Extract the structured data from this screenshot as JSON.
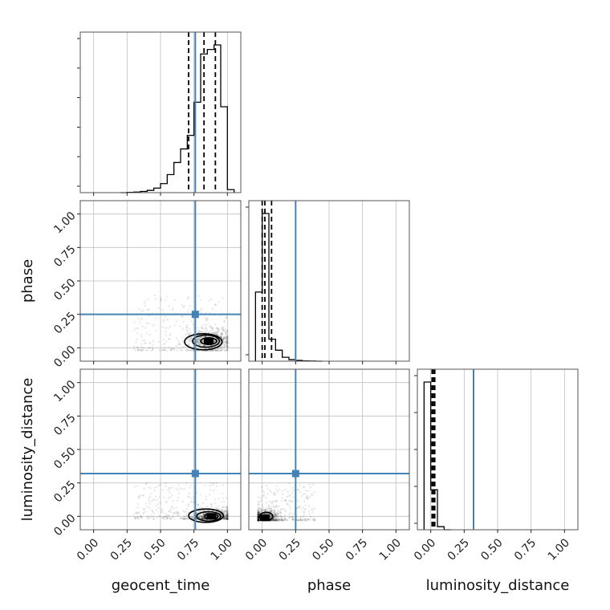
{
  "chart_data": {
    "type": "corner",
    "parameters": [
      "geocent_time",
      "phase",
      "luminosity_distance"
    ],
    "range": [
      -0.1,
      1.1
    ],
    "ticks": [
      0.0,
      0.25,
      0.5,
      0.75,
      1.0
    ],
    "tick_labels": [
      "0.00",
      "0.25",
      "0.50",
      "0.75",
      "1.00"
    ],
    "truth_color": "#4682b4",
    "truths": [
      0.76,
      0.25,
      0.32
    ],
    "grid": true,
    "histograms": [
      {
        "parameter": "geocent_time",
        "bin_edges": [
          0.2,
          0.25,
          0.3,
          0.35,
          0.4,
          0.45,
          0.5,
          0.55,
          0.6,
          0.65,
          0.7,
          0.75,
          0.8,
          0.85,
          0.9,
          0.95,
          1.0,
          1.05
        ],
        "counts": [
          0.0,
          0.002,
          0.004,
          0.008,
          0.015,
          0.03,
          0.06,
          0.12,
          0.2,
          0.29,
          0.38,
          0.6,
          0.92,
          0.95,
          0.98,
          0.57,
          0.02
        ],
        "quantiles": [
          0.71,
          0.825,
          0.91
        ]
      },
      {
        "parameter": "phase",
        "bin_edges": [
          -0.05,
          0.0,
          0.05,
          0.1,
          0.15,
          0.2,
          0.25,
          0.3,
          0.35,
          0.4,
          0.45
        ],
        "counts": [
          0.44,
          0.94,
          0.14,
          0.07,
          0.025,
          0.01,
          0.005,
          0.002,
          0.001,
          0.0
        ],
        "quantiles": [
          0.0,
          0.02,
          0.07
        ]
      },
      {
        "parameter": "luminosity_distance",
        "bin_edges": [
          -0.05,
          0.0,
          0.05,
          0.1,
          0.15
        ],
        "counts": [
          0.96,
          0.26,
          0.02,
          0.0
        ],
        "quantiles": [
          0.01,
          0.02,
          0.03
        ]
      }
    ],
    "scatter_panels": [
      {
        "x": "geocent_time",
        "y": "phase",
        "density_center": [
          0.86,
          0.05
        ],
        "contour_levels": [
          {
            "center": [
              0.86,
              0.05
            ],
            "rx": 0.06,
            "ry": 0.025
          },
          {
            "center": [
              0.84,
              0.05
            ],
            "rx": 0.1,
            "ry": 0.045
          },
          {
            "center": [
              0.82,
              0.045
            ],
            "rx": 0.14,
            "ry": 0.06
          }
        ],
        "sample_extent": {
          "x": [
            0.3,
            1.0
          ],
          "y": [
            -0.02,
            0.4
          ]
        }
      },
      {
        "x": "geocent_time",
        "y": "luminosity_distance",
        "density_center": [
          0.88,
          0.0
        ],
        "contour_levels": [
          {
            "center": [
              0.88,
              0.0
            ],
            "rx": 0.05,
            "ry": 0.02
          },
          {
            "center": [
              0.86,
              0.0
            ],
            "rx": 0.09,
            "ry": 0.035
          },
          {
            "center": [
              0.84,
              0.005
            ],
            "rx": 0.13,
            "ry": 0.05
          }
        ],
        "sample_extent": {
          "x": [
            0.3,
            1.0
          ],
          "y": [
            -0.02,
            0.25
          ]
        }
      },
      {
        "x": "phase",
        "y": "luminosity_distance",
        "density_center": [
          0.02,
          -0.01
        ],
        "contour_levels": [
          {
            "center": [
              0.02,
              -0.01
            ],
            "rx": 0.03,
            "ry": 0.02
          },
          {
            "center": [
              0.03,
              0.0
            ],
            "rx": 0.05,
            "ry": 0.03
          }
        ],
        "sample_extent": {
          "x": [
            -0.03,
            0.4
          ],
          "y": [
            -0.03,
            0.25
          ]
        }
      }
    ]
  }
}
